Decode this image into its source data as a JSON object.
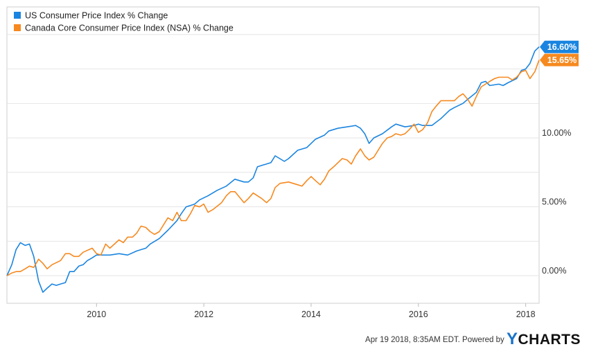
{
  "chart_data": {
    "type": "line",
    "title": "",
    "xlabel": "",
    "ylabel": "",
    "x_ticks": [
      "2010",
      "2012",
      "2014",
      "2016",
      "2018"
    ],
    "y_ticks": [
      "0.00%",
      "5.00%",
      "10.00%"
    ],
    "xlim": [
      2008.33,
      2018.25
    ],
    "ylim": [
      -2.0,
      19.5
    ],
    "grid": true,
    "legend_position": "top-left",
    "series": [
      {
        "name": "US Consumer Price Index % Change",
        "color": "#1a85e0",
        "end_label": "16.60%",
        "points": [
          [
            2008.33,
            0.0
          ],
          [
            2008.42,
            0.8
          ],
          [
            2008.5,
            1.9
          ],
          [
            2008.58,
            2.4
          ],
          [
            2008.67,
            2.2
          ],
          [
            2008.75,
            2.3
          ],
          [
            2008.83,
            1.4
          ],
          [
            2008.92,
            -0.4
          ],
          [
            2009.0,
            -1.2
          ],
          [
            2009.08,
            -0.9
          ],
          [
            2009.17,
            -0.6
          ],
          [
            2009.25,
            -0.7
          ],
          [
            2009.33,
            -0.6
          ],
          [
            2009.42,
            -0.5
          ],
          [
            2009.5,
            0.3
          ],
          [
            2009.58,
            0.3
          ],
          [
            2009.67,
            0.7
          ],
          [
            2009.75,
            0.8
          ],
          [
            2009.83,
            1.1
          ],
          [
            2009.92,
            1.3
          ],
          [
            2010.0,
            1.5
          ],
          [
            2010.08,
            1.5
          ],
          [
            2010.17,
            1.5
          ],
          [
            2010.25,
            1.5
          ],
          [
            2010.42,
            1.6
          ],
          [
            2010.58,
            1.5
          ],
          [
            2010.75,
            1.8
          ],
          [
            2010.92,
            2.0
          ],
          [
            2011.0,
            2.3
          ],
          [
            2011.17,
            2.7
          ],
          [
            2011.33,
            3.3
          ],
          [
            2011.5,
            4.0
          ],
          [
            2011.58,
            4.5
          ],
          [
            2011.67,
            5.0
          ],
          [
            2011.83,
            5.2
          ],
          [
            2011.92,
            5.5
          ],
          [
            2012.08,
            5.8
          ],
          [
            2012.25,
            6.2
          ],
          [
            2012.42,
            6.5
          ],
          [
            2012.58,
            7.0
          ],
          [
            2012.75,
            6.8
          ],
          [
            2012.83,
            6.8
          ],
          [
            2012.92,
            7.1
          ],
          [
            2013.0,
            7.9
          ],
          [
            2013.08,
            8.0
          ],
          [
            2013.25,
            8.2
          ],
          [
            2013.33,
            8.7
          ],
          [
            2013.5,
            8.3
          ],
          [
            2013.58,
            8.5
          ],
          [
            2013.75,
            9.1
          ],
          [
            2013.92,
            9.3
          ],
          [
            2014.08,
            9.9
          ],
          [
            2014.25,
            10.2
          ],
          [
            2014.33,
            10.5
          ],
          [
            2014.5,
            10.7
          ],
          [
            2014.67,
            10.8
          ],
          [
            2014.83,
            10.9
          ],
          [
            2014.92,
            10.7
          ],
          [
            2015.0,
            10.3
          ],
          [
            2015.08,
            9.6
          ],
          [
            2015.17,
            10.0
          ],
          [
            2015.33,
            10.3
          ],
          [
            2015.5,
            10.8
          ],
          [
            2015.58,
            11.0
          ],
          [
            2015.75,
            10.8
          ],
          [
            2015.92,
            10.9
          ],
          [
            2016.0,
            11.0
          ],
          [
            2016.08,
            10.9
          ],
          [
            2016.17,
            10.9
          ],
          [
            2016.25,
            10.9
          ],
          [
            2016.42,
            11.4
          ],
          [
            2016.58,
            12.0
          ],
          [
            2016.67,
            12.2
          ],
          [
            2016.83,
            12.5
          ],
          [
            2016.92,
            12.8
          ],
          [
            2017.08,
            13.3
          ],
          [
            2017.17,
            14.0
          ],
          [
            2017.25,
            14.1
          ],
          [
            2017.33,
            13.8
          ],
          [
            2017.5,
            13.9
          ],
          [
            2017.58,
            13.8
          ],
          [
            2017.67,
            14.0
          ],
          [
            2017.83,
            14.3
          ],
          [
            2017.92,
            14.9
          ],
          [
            2018.0,
            15.0
          ],
          [
            2018.08,
            15.4
          ],
          [
            2018.17,
            16.3
          ],
          [
            2018.25,
            16.6
          ]
        ]
      },
      {
        "name": "Canada Core Consumer Price Index (NSA) % Change",
        "color": "#f6891f",
        "end_label": "15.65%",
        "points": [
          [
            2008.33,
            0.0
          ],
          [
            2008.42,
            0.2
          ],
          [
            2008.5,
            0.3
          ],
          [
            2008.58,
            0.3
          ],
          [
            2008.67,
            0.5
          ],
          [
            2008.75,
            0.7
          ],
          [
            2008.83,
            0.6
          ],
          [
            2008.92,
            1.2
          ],
          [
            2009.0,
            0.9
          ],
          [
            2009.08,
            0.5
          ],
          [
            2009.17,
            0.8
          ],
          [
            2009.33,
            1.1
          ],
          [
            2009.42,
            1.6
          ],
          [
            2009.5,
            1.6
          ],
          [
            2009.58,
            1.4
          ],
          [
            2009.67,
            1.4
          ],
          [
            2009.75,
            1.7
          ],
          [
            2009.92,
            2.0
          ],
          [
            2010.0,
            1.6
          ],
          [
            2010.08,
            1.5
          ],
          [
            2010.17,
            2.3
          ],
          [
            2010.25,
            2.0
          ],
          [
            2010.42,
            2.6
          ],
          [
            2010.5,
            2.4
          ],
          [
            2010.58,
            2.8
          ],
          [
            2010.67,
            2.8
          ],
          [
            2010.75,
            3.1
          ],
          [
            2010.83,
            3.6
          ],
          [
            2010.92,
            3.5
          ],
          [
            2011.0,
            3.2
          ],
          [
            2011.08,
            3.0
          ],
          [
            2011.17,
            3.2
          ],
          [
            2011.33,
            4.2
          ],
          [
            2011.42,
            4.0
          ],
          [
            2011.5,
            4.6
          ],
          [
            2011.58,
            4.0
          ],
          [
            2011.67,
            4.0
          ],
          [
            2011.75,
            4.5
          ],
          [
            2011.83,
            5.1
          ],
          [
            2011.92,
            5.0
          ],
          [
            2012.0,
            5.2
          ],
          [
            2012.08,
            4.6
          ],
          [
            2012.17,
            4.8
          ],
          [
            2012.33,
            5.3
          ],
          [
            2012.42,
            5.8
          ],
          [
            2012.5,
            6.1
          ],
          [
            2012.58,
            6.1
          ],
          [
            2012.75,
            5.3
          ],
          [
            2012.83,
            5.6
          ],
          [
            2012.92,
            6.0
          ],
          [
            2013.0,
            5.8
          ],
          [
            2013.08,
            5.6
          ],
          [
            2013.17,
            5.3
          ],
          [
            2013.25,
            5.6
          ],
          [
            2013.33,
            6.4
          ],
          [
            2013.42,
            6.7
          ],
          [
            2013.58,
            6.8
          ],
          [
            2013.75,
            6.6
          ],
          [
            2013.83,
            6.5
          ],
          [
            2013.92,
            6.9
          ],
          [
            2014.0,
            7.2
          ],
          [
            2014.08,
            6.9
          ],
          [
            2014.17,
            6.6
          ],
          [
            2014.25,
            7.0
          ],
          [
            2014.33,
            7.6
          ],
          [
            2014.42,
            7.9
          ],
          [
            2014.5,
            8.2
          ],
          [
            2014.58,
            8.5
          ],
          [
            2014.67,
            8.4
          ],
          [
            2014.75,
            8.1
          ],
          [
            2014.83,
            8.7
          ],
          [
            2014.92,
            9.2
          ],
          [
            2015.0,
            8.7
          ],
          [
            2015.08,
            8.4
          ],
          [
            2015.17,
            8.6
          ],
          [
            2015.33,
            9.6
          ],
          [
            2015.42,
            10.0
          ],
          [
            2015.5,
            10.1
          ],
          [
            2015.58,
            10.3
          ],
          [
            2015.67,
            10.2
          ],
          [
            2015.75,
            10.3
          ],
          [
            2015.83,
            10.6
          ],
          [
            2015.92,
            11.0
          ],
          [
            2016.0,
            10.4
          ],
          [
            2016.08,
            10.6
          ],
          [
            2016.17,
            11.1
          ],
          [
            2016.25,
            11.9
          ],
          [
            2016.33,
            12.3
          ],
          [
            2016.42,
            12.7
          ],
          [
            2016.5,
            12.7
          ],
          [
            2016.67,
            12.7
          ],
          [
            2016.75,
            13.0
          ],
          [
            2016.83,
            13.2
          ],
          [
            2016.92,
            12.8
          ],
          [
            2017.0,
            12.3
          ],
          [
            2017.08,
            13.0
          ],
          [
            2017.17,
            13.7
          ],
          [
            2017.33,
            14.1
          ],
          [
            2017.42,
            14.3
          ],
          [
            2017.5,
            14.4
          ],
          [
            2017.67,
            14.4
          ],
          [
            2017.75,
            14.2
          ],
          [
            2017.83,
            14.4
          ],
          [
            2017.92,
            14.8
          ],
          [
            2018.0,
            14.9
          ],
          [
            2018.08,
            14.3
          ],
          [
            2018.17,
            14.8
          ],
          [
            2018.25,
            15.65
          ]
        ]
      }
    ]
  },
  "footer": {
    "timestamp": "Apr 19 2018, 8:35AM EDT.",
    "powered_by": "Powered by",
    "brand_y": "Y",
    "brand_rest": "CHARTS"
  }
}
